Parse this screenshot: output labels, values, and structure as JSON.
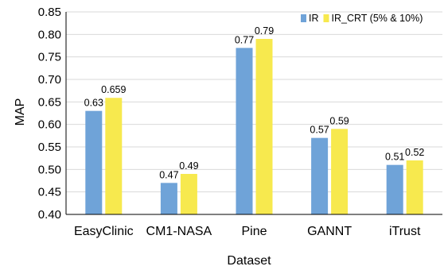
{
  "chart_data": {
    "type": "bar",
    "categories": [
      "EasyClinic",
      "CM1-NASA",
      "Pine",
      "GANNT",
      "iTrust"
    ],
    "series": [
      {
        "name": "IR",
        "values": [
          0.63,
          0.47,
          0.77,
          0.57,
          0.51
        ],
        "labels": [
          "0.63",
          "0.47",
          "0.77",
          "0.57",
          "0.51"
        ],
        "color": "#6fa3d8"
      },
      {
        "name": "IR_CRT (5% & 10%)",
        "values": [
          0.659,
          0.49,
          0.79,
          0.59,
          0.52
        ],
        "labels": [
          "0.659",
          "0.49",
          "0.79",
          "0.59",
          "0.52"
        ],
        "color": "#f7e94e"
      }
    ],
    "xlabel": "Dataset",
    "ylabel": "MAP",
    "ylim": [
      0.4,
      0.85
    ],
    "yticks": [
      "0.40",
      "0.45",
      "0.50",
      "0.55",
      "0.60",
      "0.65",
      "0.70",
      "0.75",
      "0.80",
      "0.85"
    ],
    "grid": true,
    "legend_position": "top-right"
  }
}
